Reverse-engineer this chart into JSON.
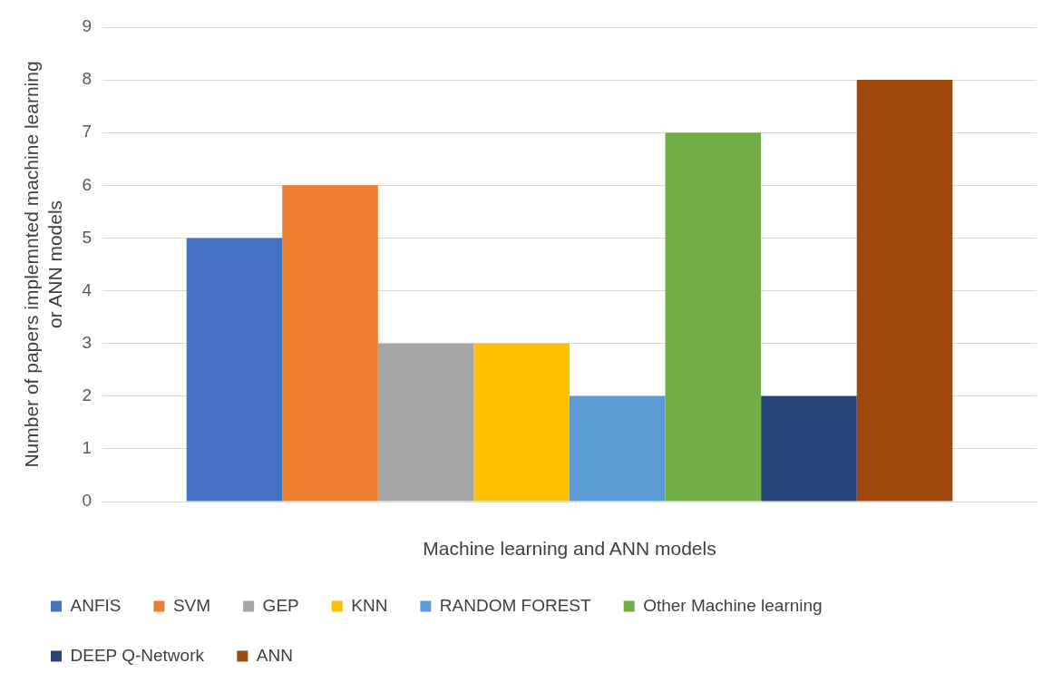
{
  "chart_data": {
    "type": "bar",
    "xlabel": "Machine learning and ANN models",
    "ylabel": "Number of papers implemnted machine learning or ANN models",
    "categories": [
      null
    ],
    "series": [
      {
        "name": "ANFIS",
        "color": "#4472c4",
        "values": [
          5
        ]
      },
      {
        "name": "SVM",
        "color": "#ed7d31",
        "values": [
          6
        ]
      },
      {
        "name": "GEP",
        "color": "#a5a5a5",
        "values": [
          3
        ]
      },
      {
        "name": "KNN",
        "color": "#ffc000",
        "values": [
          3
        ]
      },
      {
        "name": "RANDOM FOREST",
        "color": "#5b9bd5",
        "values": [
          2
        ]
      },
      {
        "name": "Other Machine learning",
        "color": "#70ad47",
        "values": [
          7
        ]
      },
      {
        "name": "DEEP Q-Network",
        "color": "#264478",
        "values": [
          2
        ]
      },
      {
        "name": "ANN",
        "color": "#9e480e",
        "values": [
          8
        ]
      }
    ],
    "ylim": [
      0,
      9
    ],
    "yticks": [
      0,
      1,
      2,
      3,
      4,
      5,
      6,
      7,
      8,
      9
    ],
    "grid": "y",
    "legend": "bottom"
  }
}
